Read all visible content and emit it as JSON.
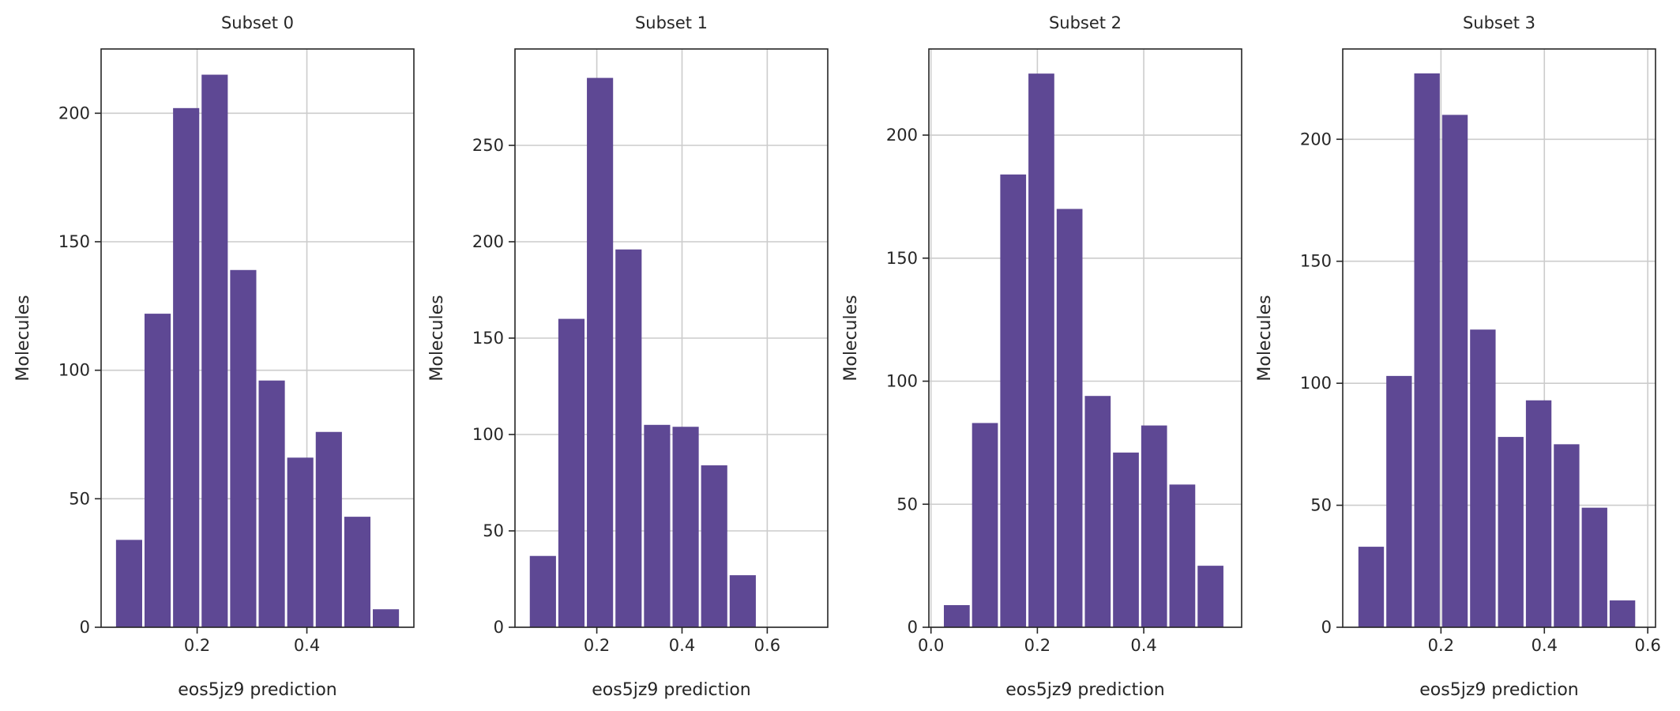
{
  "chart_data": [
    {
      "type": "bar",
      "title": "Subset 0",
      "xlabel": "eos5jz9 prediction",
      "ylabel": "Molecules",
      "bar_color": "#5e4894",
      "grid": true,
      "xlim": [
        0.025,
        0.595
      ],
      "ylim": [
        0,
        225
      ],
      "xticks": [
        0.2,
        0.4
      ],
      "xtick_labels": [
        "0.2",
        "0.4"
      ],
      "yticks": [
        0,
        50,
        100,
        150,
        200
      ],
      "ytick_labels": [
        "0",
        "50",
        "100",
        "150",
        "200"
      ],
      "bin_edges": [
        0.05,
        0.102,
        0.154,
        0.206,
        0.258,
        0.31,
        0.362,
        0.414,
        0.466,
        0.518,
        0.57
      ],
      "values": [
        34,
        122,
        202,
        215,
        139,
        96,
        66,
        76,
        43,
        7
      ]
    },
    {
      "type": "bar",
      "title": "Subset 1",
      "xlabel": "eos5jz9 prediction",
      "ylabel": "Molecules",
      "bar_color": "#5e4894",
      "grid": true,
      "xlim": [
        0.008,
        0.742
      ],
      "ylim": [
        0,
        300
      ],
      "xticks": [
        0.2,
        0.4,
        0.6
      ],
      "xtick_labels": [
        "0.2",
        "0.4",
        "0.6"
      ],
      "yticks": [
        0,
        50,
        100,
        150,
        200,
        250
      ],
      "ytick_labels": [
        "0",
        "50",
        "100",
        "150",
        "200",
        "250"
      ],
      "bin_edges": [
        0.04,
        0.107,
        0.174,
        0.241,
        0.308,
        0.375,
        0.442,
        0.509,
        0.576,
        0.643,
        0.71
      ],
      "values": [
        37,
        160,
        285,
        196,
        105,
        104,
        84,
        27,
        0,
        0
      ]
    },
    {
      "type": "bar",
      "title": "Subset 2",
      "xlabel": "eos5jz9 prediction",
      "ylabel": "Molecules",
      "bar_color": "#5e4894",
      "grid": true,
      "xlim": [
        -0.004,
        0.584
      ],
      "ylim": [
        0,
        235
      ],
      "xticks": [
        0.0,
        0.2,
        0.4
      ],
      "xtick_labels": [
        "0.0",
        "0.2",
        "0.4"
      ],
      "yticks": [
        0,
        50,
        100,
        150,
        200
      ],
      "ytick_labels": [
        "0",
        "50",
        "100",
        "150",
        "200"
      ],
      "bin_edges": [
        0.022,
        0.075,
        0.128,
        0.181,
        0.234,
        0.287,
        0.34,
        0.393,
        0.446,
        0.499,
        0.552
      ],
      "values": [
        9,
        83,
        184,
        225,
        170,
        94,
        71,
        82,
        58,
        25
      ]
    },
    {
      "type": "bar",
      "title": "Subset 3",
      "xlabel": "eos5jz9 prediction",
      "ylabel": "Molecules",
      "bar_color": "#5e4894",
      "grid": true,
      "xlim": [
        0.01,
        0.615
      ],
      "ylim": [
        0,
        237
      ],
      "xticks": [
        0.2,
        0.4,
        0.6
      ],
      "xtick_labels": [
        "0.2",
        "0.4",
        "0.6"
      ],
      "yticks": [
        0,
        50,
        100,
        150,
        200
      ],
      "ytick_labels": [
        "0",
        "50",
        "100",
        "150",
        "200"
      ],
      "bin_edges": [
        0.038,
        0.092,
        0.146,
        0.2,
        0.254,
        0.308,
        0.362,
        0.416,
        0.47,
        0.524,
        0.578
      ],
      "values": [
        33,
        103,
        227,
        210,
        122,
        78,
        93,
        75,
        49,
        11
      ]
    }
  ]
}
